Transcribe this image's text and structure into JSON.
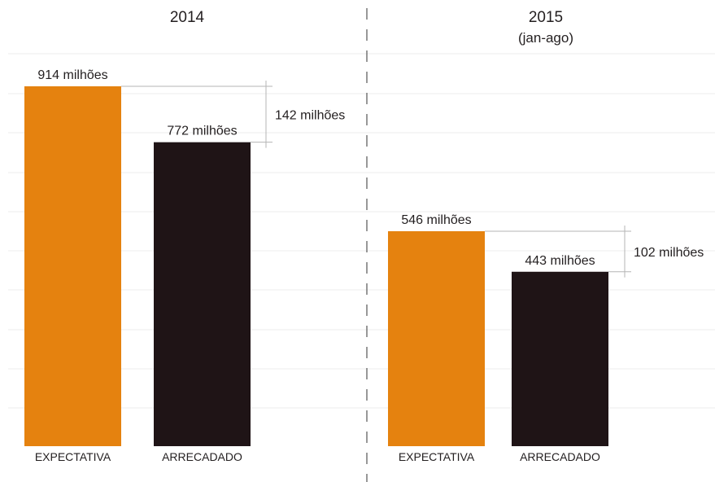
{
  "colors": {
    "expectativa": "#e5820f",
    "arrecadado": "#1f1416",
    "grid": "#ececec",
    "bracket": "#b5b5b5",
    "divider": "#555555"
  },
  "chart_data": [
    {
      "type": "bar",
      "title": "2014",
      "subtitle": "",
      "categories": [
        "EXPECTATIVA",
        "ARRECADADO"
      ],
      "values": [
        914,
        772
      ],
      "unit": "milhões",
      "data_labels": [
        "914 milhões",
        "772 milhões"
      ],
      "difference": {
        "value": 142,
        "label": "142 milhões"
      },
      "grid": true
    },
    {
      "type": "bar",
      "title": "2015",
      "subtitle": "(jan-ago)",
      "categories": [
        "EXPECTATIVA",
        "ARRECADADO"
      ],
      "values": [
        546,
        443
      ],
      "unit": "milhões",
      "data_labels": [
        "546 milhões",
        "443 milhões"
      ],
      "difference": {
        "value": 102,
        "label": "102 milhões"
      },
      "grid": true
    }
  ]
}
